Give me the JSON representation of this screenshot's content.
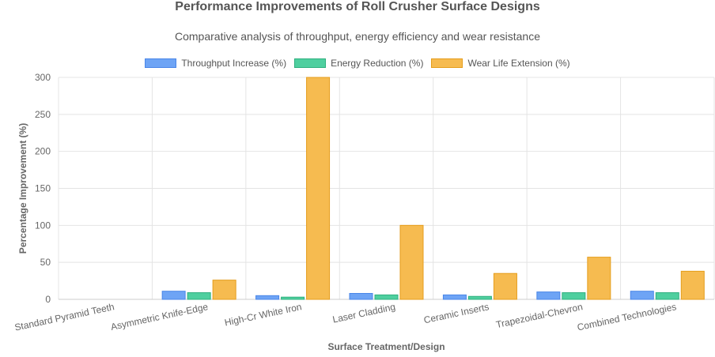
{
  "chart_data": {
    "type": "bar",
    "title": "Performance Improvements of Roll Crusher Surface Designs",
    "subtitle": "Comparative analysis of throughput, energy efficiency and wear resistance",
    "xlabel": "Surface Treatment/Design",
    "ylabel": "Percentage Improvement (%)",
    "ylim": [
      0,
      300
    ],
    "yticks": [
      0,
      50,
      100,
      150,
      200,
      250,
      300
    ],
    "grid": true,
    "legend_position": "top",
    "categories": [
      "Standard Pyramid Teeth",
      "Asymmetric Knife-Edge",
      "High-Cr White Iron",
      "Laser Cladding",
      "Ceramic Inserts",
      "Trapezoidal-Chevron",
      "Combined Technologies"
    ],
    "series": [
      {
        "name": "Throughput Increase (%)",
        "color": "#6ea4f5",
        "border": "#4a86e8",
        "values": [
          0,
          11,
          5,
          8,
          6,
          10,
          11
        ]
      },
      {
        "name": "Energy Reduction (%)",
        "color": "#4fcf9f",
        "border": "#2fb07f",
        "values": [
          0,
          9,
          3,
          6,
          4,
          9,
          9
        ]
      },
      {
        "name": "Wear Life Extension (%)",
        "color": "#f6bb50",
        "border": "#e59d1c",
        "values": [
          0,
          26,
          300,
          100,
          35,
          57,
          38
        ]
      }
    ]
  }
}
